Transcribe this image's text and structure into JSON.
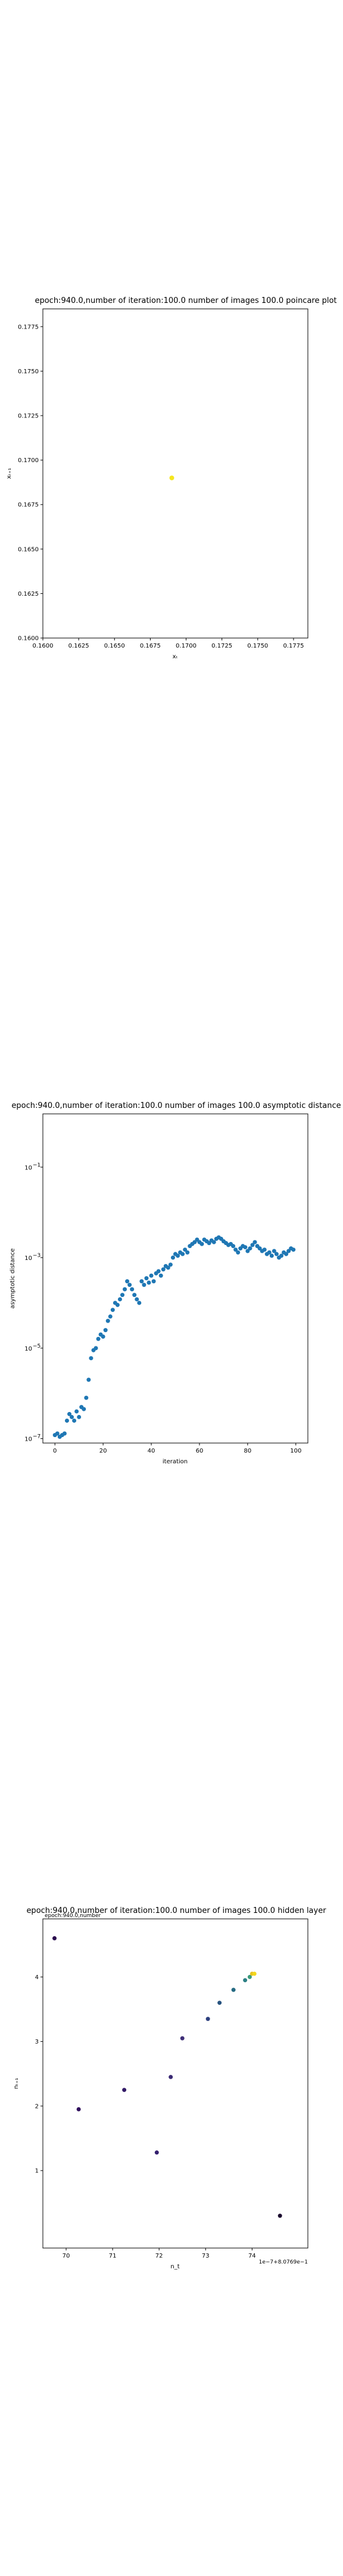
{
  "chart_data": [
    {
      "type": "scatter",
      "title": "epoch:940.0,number of iteration:100.0 number of images 100.0 poincare plot",
      "xlabel": "xₜ",
      "ylabel": "xₜ₊₁",
      "xlim": [
        0.16,
        0.1785
      ],
      "ylim": [
        0.16,
        0.1785
      ],
      "x_ticks": [
        {
          "value": 0.16,
          "label": "0.1600"
        },
        {
          "value": 0.1625,
          "label": "0.1625"
        },
        {
          "value": 0.165,
          "label": "0.1650"
        },
        {
          "value": 0.1675,
          "label": "0.1675"
        },
        {
          "value": 0.17,
          "label": "0.1700"
        },
        {
          "value": 0.1725,
          "label": "0.1725"
        },
        {
          "value": 0.175,
          "label": "0.1750"
        },
        {
          "value": 0.1775,
          "label": "0.1775"
        }
      ],
      "y_ticks": [
        {
          "value": 0.16,
          "label": "0.1600"
        },
        {
          "value": 0.1625,
          "label": "0.1625"
        },
        {
          "value": 0.165,
          "label": "0.1650"
        },
        {
          "value": 0.1675,
          "label": "0.1675"
        },
        {
          "value": 0.17,
          "label": "0.1700"
        },
        {
          "value": 0.1725,
          "label": "0.1725"
        },
        {
          "value": 0.175,
          "label": "0.1750"
        },
        {
          "value": 0.1775,
          "label": "0.1775"
        }
      ],
      "points": [
        {
          "x": 0.169,
          "y": 0.169
        }
      ],
      "point_color": "#f5e61f",
      "grid": false
    },
    {
      "type": "scatter",
      "title": "epoch:940.0,number of iteration:100.0  number of images 100.0 asymptotic distance",
      "xlabel": "iteration",
      "ylabel": "asymptotic distance",
      "y_scale": "log",
      "xlim": [
        -5,
        105
      ],
      "ylim": [
        8e-08,
        1.5
      ],
      "x_ticks": [
        {
          "value": 0,
          "label": "0"
        },
        {
          "value": 20,
          "label": "20"
        },
        {
          "value": 40,
          "label": "40"
        },
        {
          "value": 60,
          "label": "60"
        },
        {
          "value": 80,
          "label": "80"
        },
        {
          "value": 100,
          "label": "100"
        }
      ],
      "y_ticks": [
        {
          "value": 1e-07,
          "base": "10",
          "exp": "−7"
        },
        {
          "value": 1e-05,
          "base": "10",
          "exp": "−5"
        },
        {
          "value": 0.001,
          "base": "10",
          "exp": "−3"
        },
        {
          "value": 0.1,
          "base": "10",
          "exp": "−1"
        }
      ],
      "point_color": "#1f77b4",
      "x": [
        0,
        1,
        2,
        3,
        4,
        5,
        6,
        7,
        8,
        9,
        10,
        11,
        12,
        13,
        14,
        15,
        16,
        17,
        18,
        19,
        20,
        21,
        22,
        23,
        24,
        25,
        26,
        27,
        28,
        29,
        30,
        31,
        32,
        33,
        34,
        35,
        36,
        37,
        38,
        39,
        40,
        41,
        42,
        43,
        44,
        45,
        46,
        47,
        48,
        49,
        50,
        51,
        52,
        53,
        54,
        55,
        56,
        57,
        58,
        59,
        60,
        61,
        62,
        63,
        64,
        65,
        66,
        67,
        68,
        69,
        70,
        71,
        72,
        73,
        74,
        75,
        76,
        77,
        78,
        79,
        80,
        81,
        82,
        83,
        84,
        85,
        86,
        87,
        88,
        89,
        90,
        91,
        92,
        93,
        94,
        95,
        96,
        97,
        98,
        99
      ],
      "y": [
        1.2e-07,
        1.3e-07,
        1.1e-07,
        1.2e-07,
        1.3e-07,
        2.5e-07,
        3.5e-07,
        3e-07,
        2.5e-07,
        4e-07,
        3e-07,
        5e-07,
        4.5e-07,
        8e-07,
        2e-06,
        6e-06,
        9e-06,
        1e-05,
        1.6e-05,
        2e-05,
        1.8e-05,
        2.5e-05,
        4e-05,
        5e-05,
        7e-05,
        0.0001,
        9e-05,
        0.00012,
        0.00015,
        0.0002,
        0.0003,
        0.00025,
        0.0002,
        0.00015,
        0.00012,
        0.0001,
        0.0003,
        0.00025,
        0.00035,
        0.00028,
        0.0004,
        0.0003,
        0.00045,
        0.0005,
        0.0004,
        0.00055,
        0.00065,
        0.0006,
        0.0007,
        0.001,
        0.0012,
        0.0011,
        0.0013,
        0.0012,
        0.0015,
        0.0013,
        0.0018,
        0.002,
        0.0022,
        0.0025,
        0.0022,
        0.002,
        0.0025,
        0.0023,
        0.0021,
        0.0024,
        0.0022,
        0.0026,
        0.0028,
        0.0026,
        0.0023,
        0.0021,
        0.0019,
        0.002,
        0.0018,
        0.0015,
        0.0013,
        0.0016,
        0.0018,
        0.0017,
        0.0014,
        0.0016,
        0.0019,
        0.0022,
        0.0018,
        0.0016,
        0.0014,
        0.0015,
        0.0012,
        0.0013,
        0.0011,
        0.0014,
        0.0012,
        0.001,
        0.0011,
        0.0013,
        0.0012,
        0.0014,
        0.0016,
        0.0015
      ],
      "grid": false
    },
    {
      "type": "scatter",
      "title": "epoch:940.0,number of iteration:100.0  number of images 100.0 hidden layer",
      "xlabel": "n_t",
      "ylabel": "nₜ₊₁",
      "offset_text": "1e−7+8.0769e−1",
      "overlay_text": "epoch:940.0,number",
      "xlim": [
        69.5,
        75.2
      ],
      "ylim": [
        -0.2,
        4.9
      ],
      "x_ticks": [
        {
          "value": 70,
          "label": "70"
        },
        {
          "value": 71,
          "label": "71"
        },
        {
          "value": 72,
          "label": "72"
        },
        {
          "value": 73,
          "label": "73"
        },
        {
          "value": 74,
          "label": "74"
        }
      ],
      "y_ticks": [
        {
          "value": 1,
          "label": "1"
        },
        {
          "value": 2,
          "label": "2"
        },
        {
          "value": 3,
          "label": "3"
        },
        {
          "value": 4,
          "label": "4"
        }
      ],
      "points": [
        {
          "x": 69.75,
          "y": 4.6,
          "color": "#2b0a4e"
        },
        {
          "x": 70.27,
          "y": 1.95,
          "color": "#30105c"
        },
        {
          "x": 71.25,
          "y": 2.25,
          "color": "#321a66"
        },
        {
          "x": 71.95,
          "y": 1.28,
          "color": "#35206e"
        },
        {
          "x": 72.25,
          "y": 2.45,
          "color": "#3a2a74"
        },
        {
          "x": 72.5,
          "y": 3.05,
          "color": "#3f2f78"
        },
        {
          "x": 73.05,
          "y": 3.35,
          "color": "#2d3f7e"
        },
        {
          "x": 73.3,
          "y": 3.6,
          "color": "#27537f"
        },
        {
          "x": 73.6,
          "y": 3.8,
          "color": "#256a82"
        },
        {
          "x": 73.85,
          "y": 3.95,
          "color": "#2b7f84"
        },
        {
          "x": 73.95,
          "y": 4.0,
          "color": "#3a9a7a"
        },
        {
          "x": 74.0,
          "y": 4.05,
          "color": "#e6c223"
        },
        {
          "x": 74.05,
          "y": 4.05,
          "color": "#f3d61c"
        },
        {
          "x": 74.6,
          "y": 0.3,
          "color": "#1a0a2e"
        }
      ],
      "grid": false
    }
  ]
}
